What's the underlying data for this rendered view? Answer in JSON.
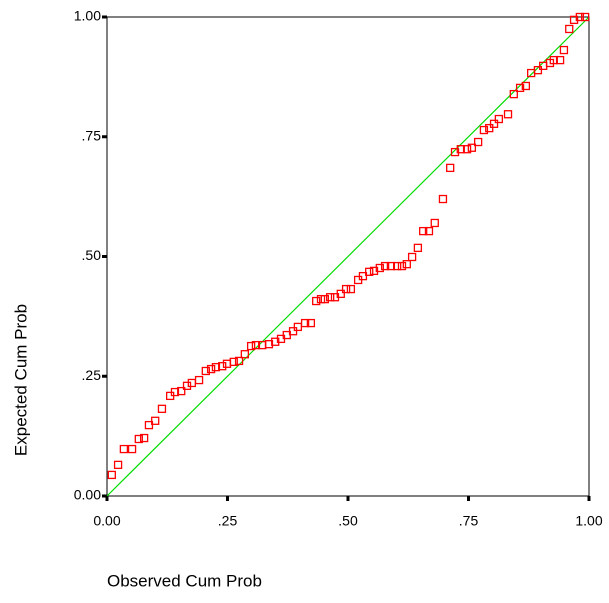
{
  "chart_data": {
    "type": "scatter",
    "xlabel": "Observed Cum Prob",
    "ylabel": "Expected Cum Prob",
    "xlim": [
      0,
      1
    ],
    "ylim": [
      0,
      1
    ],
    "xticks": [
      {
        "value": 0,
        "label": "0.00"
      },
      {
        "value": 0.25,
        "label": ".25"
      },
      {
        "value": 0.5,
        "label": ".50"
      },
      {
        "value": 0.75,
        "label": ".75"
      },
      {
        "value": 1,
        "label": "1.00"
      }
    ],
    "yticks": [
      {
        "value": 0,
        "label": "0.00"
      },
      {
        "value": 0.25,
        "label": ".25"
      },
      {
        "value": 0.5,
        "label": ".50"
      },
      {
        "value": 0.75,
        "label": ".75"
      },
      {
        "value": 1,
        "label": "1.00"
      }
    ],
    "reference_line_color": "#00dd00",
    "series": [
      {
        "color": "#ff0000",
        "x": [
          0.01,
          0.023,
          0.035,
          0.052,
          0.066,
          0.077,
          0.087,
          0.1,
          0.114,
          0.131,
          0.141,
          0.154,
          0.166,
          0.176,
          0.191,
          0.205,
          0.216,
          0.226,
          0.239,
          0.249,
          0.263,
          0.274,
          0.286,
          0.299,
          0.309,
          0.322,
          0.336,
          0.349,
          0.361,
          0.373,
          0.386,
          0.396,
          0.411,
          0.423,
          0.434,
          0.444,
          0.452,
          0.463,
          0.473,
          0.485,
          0.496,
          0.506,
          0.521,
          0.531,
          0.544,
          0.554,
          0.566,
          0.577,
          0.589,
          0.602,
          0.612,
          0.622,
          0.633,
          0.645,
          0.656,
          0.668,
          0.68,
          0.697,
          0.712,
          0.722,
          0.734,
          0.747,
          0.757,
          0.77,
          0.782,
          0.793,
          0.803,
          0.813,
          0.832,
          0.844,
          0.857,
          0.869,
          0.88,
          0.894,
          0.905,
          0.919,
          0.927,
          0.94,
          0.948,
          0.959,
          0.969,
          0.981,
          0.992
        ],
        "values": [
          0.044,
          0.065,
          0.098,
          0.098,
          0.119,
          0.121,
          0.148,
          0.157,
          0.182,
          0.209,
          0.217,
          0.219,
          0.23,
          0.236,
          0.242,
          0.261,
          0.265,
          0.269,
          0.271,
          0.276,
          0.28,
          0.282,
          0.296,
          0.313,
          0.315,
          0.315,
          0.317,
          0.322,
          0.328,
          0.336,
          0.344,
          0.353,
          0.361,
          0.361,
          0.407,
          0.411,
          0.411,
          0.415,
          0.415,
          0.422,
          0.432,
          0.432,
          0.451,
          0.459,
          0.468,
          0.47,
          0.476,
          0.48,
          0.48,
          0.48,
          0.48,
          0.484,
          0.499,
          0.518,
          0.553,
          0.553,
          0.57,
          0.62,
          0.685,
          0.718,
          0.724,
          0.724,
          0.727,
          0.739,
          0.764,
          0.768,
          0.777,
          0.787,
          0.797,
          0.839,
          0.852,
          0.856,
          0.883,
          0.889,
          0.898,
          0.904,
          0.91,
          0.91,
          0.931,
          0.975,
          0.994,
          1.0,
          1.0
        ]
      }
    ]
  }
}
